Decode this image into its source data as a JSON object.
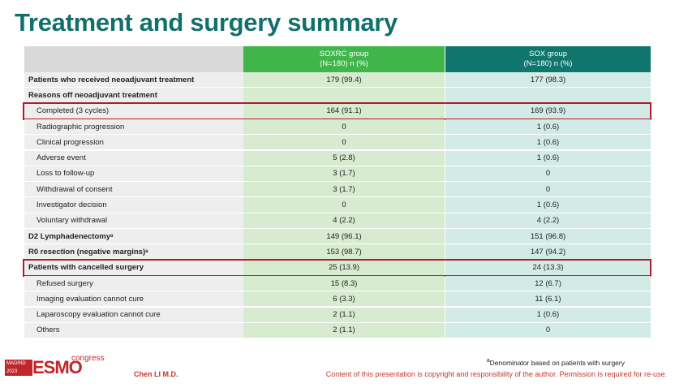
{
  "header": {
    "title": "Treatment and surgery summary"
  },
  "table": {
    "columns": [
      {
        "name": "SOXRC group",
        "sub": "(N=180)   n (%)",
        "color": "#3fb54a",
        "tint": "#d6ebcf"
      },
      {
        "name": "SOX group",
        "sub": "(N=180)  n (%)",
        "color": "#0f766e",
        "tint": "#d3ebe6"
      }
    ],
    "rows": [
      {
        "label": "Patients who received neoadjuvant treatment",
        "bold": true,
        "values": [
          "179 (99.4)",
          "177 (98.3)"
        ]
      },
      {
        "label": "Reasons off neoadjuvant treatment",
        "bold": true,
        "values": []
      },
      {
        "label": "Completed (3 cycles)",
        "indent": true,
        "highlight": true,
        "values": [
          "164 (91.1)",
          "169 (93.9)"
        ]
      },
      {
        "label": "Radiographic progression",
        "indent": true,
        "values": [
          "0",
          "1 (0.6)"
        ]
      },
      {
        "label": "Clinical progression",
        "indent": true,
        "values": [
          "0",
          "1 (0.6)"
        ]
      },
      {
        "label": "Adverse event",
        "indent": true,
        "values": [
          "5 (2.8)",
          "1 (0.6)"
        ]
      },
      {
        "label": "Loss to follow-up",
        "indent": true,
        "values": [
          "3 (1.7)",
          "0"
        ]
      },
      {
        "label": "Withdrawal of consent",
        "indent": true,
        "values": [
          "3 (1.7)",
          "0"
        ]
      },
      {
        "label": "Investigator decision",
        "indent": true,
        "values": [
          "0",
          "1 (0.6)"
        ]
      },
      {
        "label": "Voluntary withdrawal",
        "indent": true,
        "values": [
          "4 (2.2)",
          "4 (2.2)"
        ]
      },
      {
        "label": "D2 Lymphadenectomy",
        "sup": "a",
        "bold": true,
        "values": [
          "149 (96.1)",
          "151 (96.8)"
        ]
      },
      {
        "label": "R0 resection (negative margins)",
        "sup": "a",
        "bold": true,
        "values": [
          "153 (98.7)",
          "147 (94.2)"
        ]
      },
      {
        "label": "Patients with cancelled surgery",
        "bold": true,
        "highlight": true,
        "values": [
          "25 (13.9)",
          "24 (13.3)"
        ]
      },
      {
        "label": "Refused surgery",
        "indent": true,
        "values": [
          "15 (8.3)",
          "12 (6.7)"
        ]
      },
      {
        "label": "Imaging evaluation cannot cure",
        "indent": true,
        "values": [
          "6 (3.3)",
          "11 (6.1)"
        ]
      },
      {
        "label": "Laparoscopy evaluation cannot cure",
        "indent": true,
        "values": [
          "2 (1.1)",
          "1 (0.6)"
        ]
      },
      {
        "label": "Others",
        "indent": true,
        "values": [
          "2 (1.1)",
          "0"
        ]
      }
    ]
  },
  "footer": {
    "logo_city": "MADRID",
    "logo_year": "2023",
    "logo_name": "ESMO",
    "logo_congress": "congress",
    "author": "Chen LI M.D.",
    "footnote": {
      "marker": "a",
      "text": "Denominator based on patients with surgery"
    },
    "copyright": "Content of this presentation is copyright and responsibility of the author. Permission is required for re-use."
  }
}
